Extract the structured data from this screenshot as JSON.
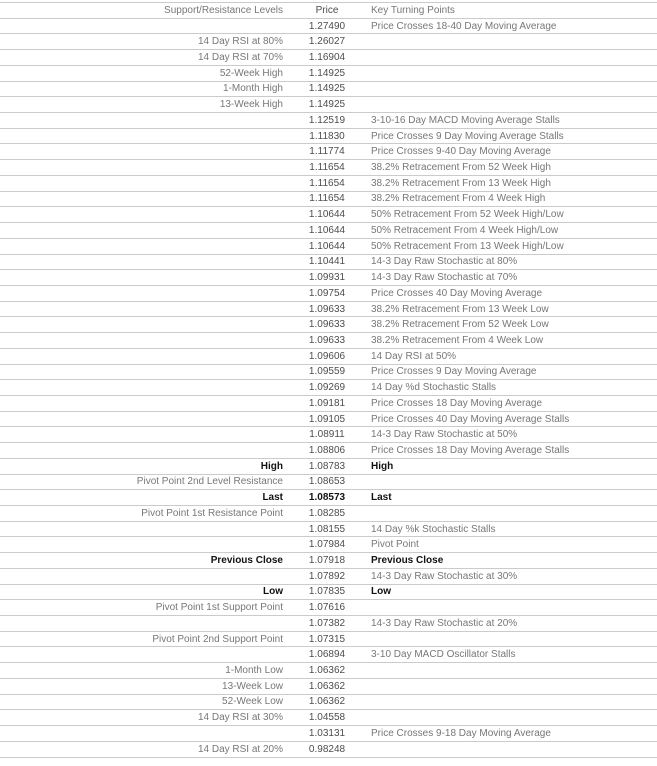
{
  "colors": {
    "border": "#cbcbcb",
    "header_text": "#1a1a1a",
    "level_text": "#777777",
    "price_text": "#4d4d4d",
    "turning_text": "#777777",
    "emphasis_text": "#111111",
    "background": "#ffffff"
  },
  "table": {
    "headers": [
      "Support/Resistance Levels",
      "Price",
      "Key Turning Points"
    ],
    "rows": [
      {
        "level": "",
        "price": "1.27490",
        "turning": "Price Crosses 18-40 Day Moving Average",
        "emphasis": ""
      },
      {
        "level": "14 Day RSI at 80%",
        "price": "1.26027",
        "turning": "",
        "emphasis": ""
      },
      {
        "level": "14 Day RSI at 70%",
        "price": "1.16904",
        "turning": "",
        "emphasis": ""
      },
      {
        "level": "52-Week High",
        "price": "1.14925",
        "turning": "",
        "emphasis": ""
      },
      {
        "level": "1-Month High",
        "price": "1.14925",
        "turning": "",
        "emphasis": ""
      },
      {
        "level": "13-Week High",
        "price": "1.14925",
        "turning": "",
        "emphasis": ""
      },
      {
        "level": "",
        "price": "1.12519",
        "turning": "3-10-16 Day MACD Moving Average Stalls",
        "emphasis": ""
      },
      {
        "level": "",
        "price": "1.11830",
        "turning": "Price Crosses 9 Day Moving Average Stalls",
        "emphasis": ""
      },
      {
        "level": "",
        "price": "1.11774",
        "turning": "Price Crosses 9-40 Day Moving Average",
        "emphasis": ""
      },
      {
        "level": "",
        "price": "1.11654",
        "turning": "38.2% Retracement From 52 Week High",
        "emphasis": ""
      },
      {
        "level": "",
        "price": "1.11654",
        "turning": "38.2% Retracement From 13 Week High",
        "emphasis": ""
      },
      {
        "level": "",
        "price": "1.11654",
        "turning": "38.2% Retracement From 4 Week High",
        "emphasis": ""
      },
      {
        "level": "",
        "price": "1.10644",
        "turning": "50% Retracement From 52 Week High/Low",
        "emphasis": ""
      },
      {
        "level": "",
        "price": "1.10644",
        "turning": "50% Retracement From 4 Week High/Low",
        "emphasis": ""
      },
      {
        "level": "",
        "price": "1.10644",
        "turning": "50% Retracement From 13 Week High/Low",
        "emphasis": ""
      },
      {
        "level": "",
        "price": "1.10441",
        "turning": "14-3 Day Raw Stochastic at 80%",
        "emphasis": ""
      },
      {
        "level": "",
        "price": "1.09931",
        "turning": "14-3 Day Raw Stochastic at 70%",
        "emphasis": ""
      },
      {
        "level": "",
        "price": "1.09754",
        "turning": "Price Crosses 40 Day Moving Average",
        "emphasis": ""
      },
      {
        "level": "",
        "price": "1.09633",
        "turning": "38.2% Retracement From 13 Week Low",
        "emphasis": ""
      },
      {
        "level": "",
        "price": "1.09633",
        "turning": "38.2% Retracement From 52 Week Low",
        "emphasis": ""
      },
      {
        "level": "",
        "price": "1.09633",
        "turning": "38.2% Retracement From 4 Week Low",
        "emphasis": ""
      },
      {
        "level": "",
        "price": "1.09606",
        "turning": "14 Day RSI at 50%",
        "emphasis": ""
      },
      {
        "level": "",
        "price": "1.09559",
        "turning": "Price Crosses 9 Day Moving Average",
        "emphasis": ""
      },
      {
        "level": "",
        "price": "1.09269",
        "turning": "14 Day %d Stochastic Stalls",
        "emphasis": ""
      },
      {
        "level": "",
        "price": "1.09181",
        "turning": "Price Crosses 18 Day Moving Average",
        "emphasis": ""
      },
      {
        "level": "",
        "price": "1.09105",
        "turning": "Price Crosses 40 Day Moving Average Stalls",
        "emphasis": ""
      },
      {
        "level": "",
        "price": "1.08911",
        "turning": "14-3 Day Raw Stochastic at 50%",
        "emphasis": ""
      },
      {
        "level": "",
        "price": "1.08806",
        "turning": "Price Crosses 18 Day Moving Average Stalls",
        "emphasis": ""
      },
      {
        "level": "High",
        "price": "1.08783",
        "turning": "High",
        "emphasis": "label"
      },
      {
        "level": "Pivot Point 2nd Level Resistance",
        "price": "1.08653",
        "turning": "",
        "emphasis": ""
      },
      {
        "level": "Last",
        "price": "1.08573",
        "turning": "Last",
        "emphasis": "all"
      },
      {
        "level": "Pivot Point 1st Resistance Point",
        "price": "1.08285",
        "turning": "",
        "emphasis": ""
      },
      {
        "level": "",
        "price": "1.08155",
        "turning": "14 Day %k Stochastic Stalls",
        "emphasis": ""
      },
      {
        "level": "",
        "price": "1.07984",
        "turning": "Pivot Point",
        "emphasis": ""
      },
      {
        "level": "Previous Close",
        "price": "1.07918",
        "turning": "Previous Close",
        "emphasis": "label"
      },
      {
        "level": "",
        "price": "1.07892",
        "turning": "14-3 Day Raw Stochastic at 30%",
        "emphasis": ""
      },
      {
        "level": "Low",
        "price": "1.07835",
        "turning": "Low",
        "emphasis": "label"
      },
      {
        "level": "Pivot Point 1st Support Point",
        "price": "1.07616",
        "turning": "",
        "emphasis": ""
      },
      {
        "level": "",
        "price": "1.07382",
        "turning": "14-3 Day Raw Stochastic at 20%",
        "emphasis": ""
      },
      {
        "level": "Pivot Point 2nd Support Point",
        "price": "1.07315",
        "turning": "",
        "emphasis": ""
      },
      {
        "level": "",
        "price": "1.06894",
        "turning": "3-10 Day MACD Oscillator Stalls",
        "emphasis": ""
      },
      {
        "level": "1-Month Low",
        "price": "1.06362",
        "turning": "",
        "emphasis": ""
      },
      {
        "level": "13-Week Low",
        "price": "1.06362",
        "turning": "",
        "emphasis": ""
      },
      {
        "level": "52-Week Low",
        "price": "1.06362",
        "turning": "",
        "emphasis": ""
      },
      {
        "level": "14 Day RSI at 30%",
        "price": "1.04558",
        "turning": "",
        "emphasis": ""
      },
      {
        "level": "",
        "price": "1.03131",
        "turning": "Price Crosses 9-18 Day Moving Average",
        "emphasis": ""
      },
      {
        "level": "14 Day RSI at 20%",
        "price": "0.98248",
        "turning": "",
        "emphasis": ""
      }
    ]
  }
}
